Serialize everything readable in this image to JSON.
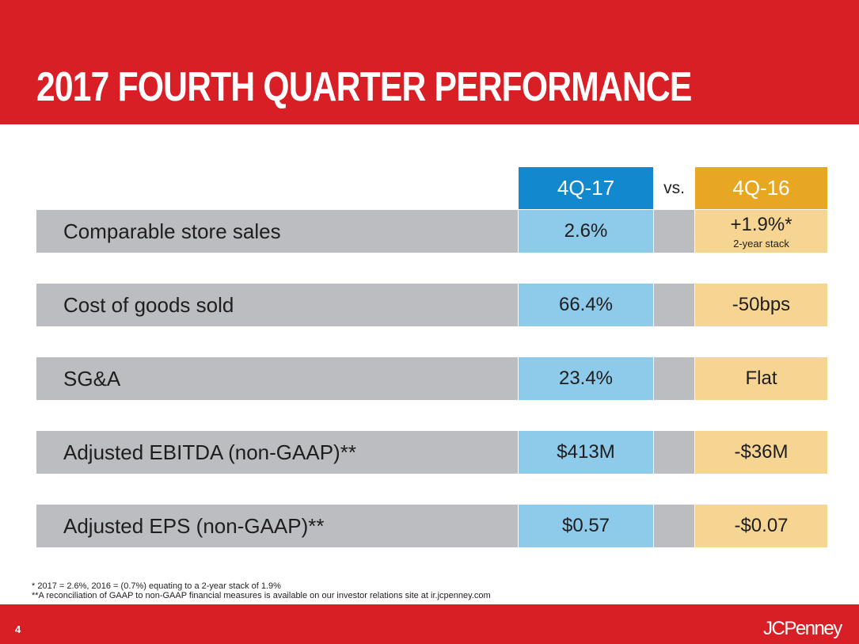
{
  "title": "2017 FOURTH QUARTER PERFORMANCE",
  "columns": {
    "current": "4Q-17",
    "vs": "vs.",
    "prior": "4Q-16"
  },
  "rows": [
    {
      "label": "Comparable store sales",
      "current": "2.6%",
      "prior": "+1.9%*",
      "prior_note": "2-year stack"
    },
    {
      "label": "Cost of goods sold",
      "current": "66.4%",
      "prior": "-50bps",
      "prior_note": ""
    },
    {
      "label": "SG&A",
      "current": "23.4%",
      "prior": "Flat",
      "prior_note": ""
    },
    {
      "label": "Adjusted EBITDA (non-GAAP)**",
      "current": "$413M",
      "prior": "-$36M",
      "prior_note": ""
    },
    {
      "label": "Adjusted EPS (non-GAAP)**",
      "current": "$0.57",
      "prior": "-$0.07",
      "prior_note": ""
    }
  ],
  "footnotes": [
    "* 2017 = 2.6%, 2016 = (0.7%) equating to a 2-year stack of 1.9%",
    "**A reconciliation of GAAP to non-GAAP financial measures is available on our investor relations site at ir.jcpenney.com"
  ],
  "page_number": "4",
  "logo": "JCPenney",
  "colors": {
    "brand_red": "#d91f26",
    "current_header": "#1289cf",
    "current_cell": "#8ecae9",
    "prior_header": "#e7a723",
    "prior_cell": "#f6d592",
    "label_cell": "#bcbdc0"
  }
}
